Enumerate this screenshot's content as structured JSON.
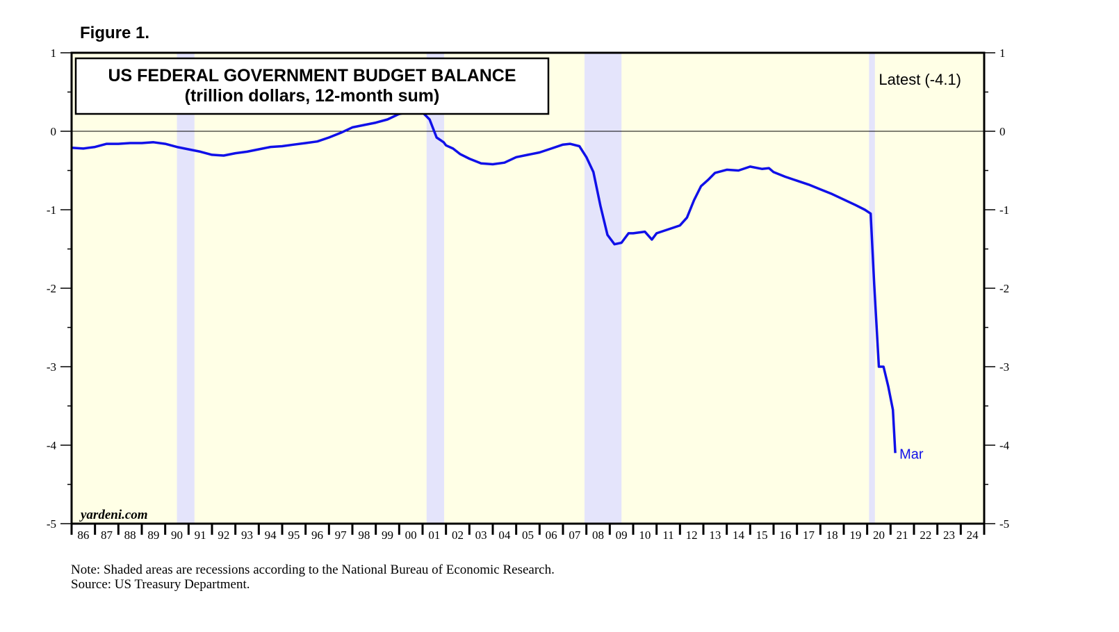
{
  "figure_label": "Figure 1.",
  "colors": {
    "plot_bg": "#ffffe6",
    "recession": "#e4e4fb",
    "line": "#1010e8",
    "axis": "#000000"
  },
  "chart_data": {
    "type": "line",
    "title": "US FEDERAL GOVERNMENT BUDGET BALANCE",
    "subtitle": "(trillion dollars, 12-month sum)",
    "latest_label": "Latest (-4.1)",
    "end_label": "Mar",
    "watermark": "yardeni.com",
    "xlim": [
      1986,
      2025
    ],
    "ylim": [
      -5,
      1
    ],
    "yticks": [
      -5,
      -4,
      -3,
      -2,
      -1,
      0,
      1
    ],
    "ytick_labels": [
      "-5",
      "-4",
      "-3",
      "-2",
      "-1",
      "0",
      "1"
    ],
    "x_tick_labels": [
      "86",
      "87",
      "88",
      "89",
      "90",
      "91",
      "92",
      "93",
      "94",
      "95",
      "96",
      "97",
      "98",
      "99",
      "00",
      "01",
      "02",
      "03",
      "04",
      "05",
      "06",
      "07",
      "08",
      "09",
      "10",
      "11",
      "12",
      "13",
      "14",
      "15",
      "16",
      "17",
      "18",
      "19",
      "20",
      "21",
      "22",
      "23",
      "24"
    ],
    "recessions": [
      [
        1990.5,
        1991.25
      ],
      [
        2001.17,
        2001.92
      ],
      [
        2007.92,
        2009.5
      ],
      [
        2020.08,
        2020.33
      ]
    ],
    "series": [
      {
        "name": "Budget balance",
        "x": [
          1986.0,
          1986.5,
          1987.0,
          1987.5,
          1988.0,
          1988.5,
          1989.0,
          1989.5,
          1990.0,
          1990.5,
          1991.0,
          1991.5,
          1992.0,
          1992.5,
          1993.0,
          1993.5,
          1994.0,
          1994.5,
          1995.0,
          1995.5,
          1996.0,
          1996.5,
          1997.0,
          1997.5,
          1998.0,
          1998.5,
          1999.0,
          1999.5,
          2000.0,
          2000.5,
          2000.8,
          2001.0,
          2001.3,
          2001.6,
          2001.9,
          2002.0,
          2002.3,
          2002.6,
          2003.0,
          2003.5,
          2004.0,
          2004.5,
          2005.0,
          2005.5,
          2006.0,
          2006.5,
          2007.0,
          2007.3,
          2007.7,
          2008.0,
          2008.3,
          2008.6,
          2008.9,
          2009.2,
          2009.5,
          2009.8,
          2010.0,
          2010.5,
          2010.8,
          2011.0,
          2011.3,
          2011.6,
          2012.0,
          2012.3,
          2012.6,
          2012.9,
          2013.2,
          2013.5,
          2014.0,
          2014.5,
          2015.0,
          2015.5,
          2015.8,
          2016.0,
          2016.5,
          2017.0,
          2017.5,
          2018.0,
          2018.5,
          2019.0,
          2019.5,
          2019.9,
          2020.15,
          2020.3,
          2020.5,
          2020.7,
          2020.9,
          2021.1,
          2021.2
        ],
        "values": [
          -0.21,
          -0.22,
          -0.2,
          -0.16,
          -0.16,
          -0.15,
          -0.15,
          -0.14,
          -0.16,
          -0.2,
          -0.23,
          -0.26,
          -0.3,
          -0.31,
          -0.28,
          -0.26,
          -0.23,
          -0.2,
          -0.19,
          -0.17,
          -0.15,
          -0.13,
          -0.08,
          -0.02,
          0.05,
          0.08,
          0.11,
          0.15,
          0.22,
          0.25,
          0.27,
          0.24,
          0.15,
          -0.08,
          -0.14,
          -0.18,
          -0.22,
          -0.29,
          -0.35,
          -0.41,
          -0.42,
          -0.4,
          -0.33,
          -0.3,
          -0.27,
          -0.22,
          -0.17,
          -0.16,
          -0.19,
          -0.33,
          -0.52,
          -0.95,
          -1.32,
          -1.44,
          -1.42,
          -1.3,
          -1.3,
          -1.28,
          -1.38,
          -1.3,
          -1.27,
          -1.24,
          -1.2,
          -1.1,
          -0.88,
          -0.7,
          -0.62,
          -0.53,
          -0.49,
          -0.5,
          -0.45,
          -0.48,
          -0.47,
          -0.52,
          -0.58,
          -0.63,
          -0.68,
          -0.74,
          -0.8,
          -0.87,
          -0.94,
          -1.0,
          -1.05,
          -1.95,
          -3.0,
          -3.0,
          -3.25,
          -3.55,
          -4.1
        ]
      }
    ]
  },
  "notes": {
    "line1": "Note: Shaded areas are recessions according to the National Bureau of Economic Research.",
    "line2": "Source: US Treasury Department."
  }
}
